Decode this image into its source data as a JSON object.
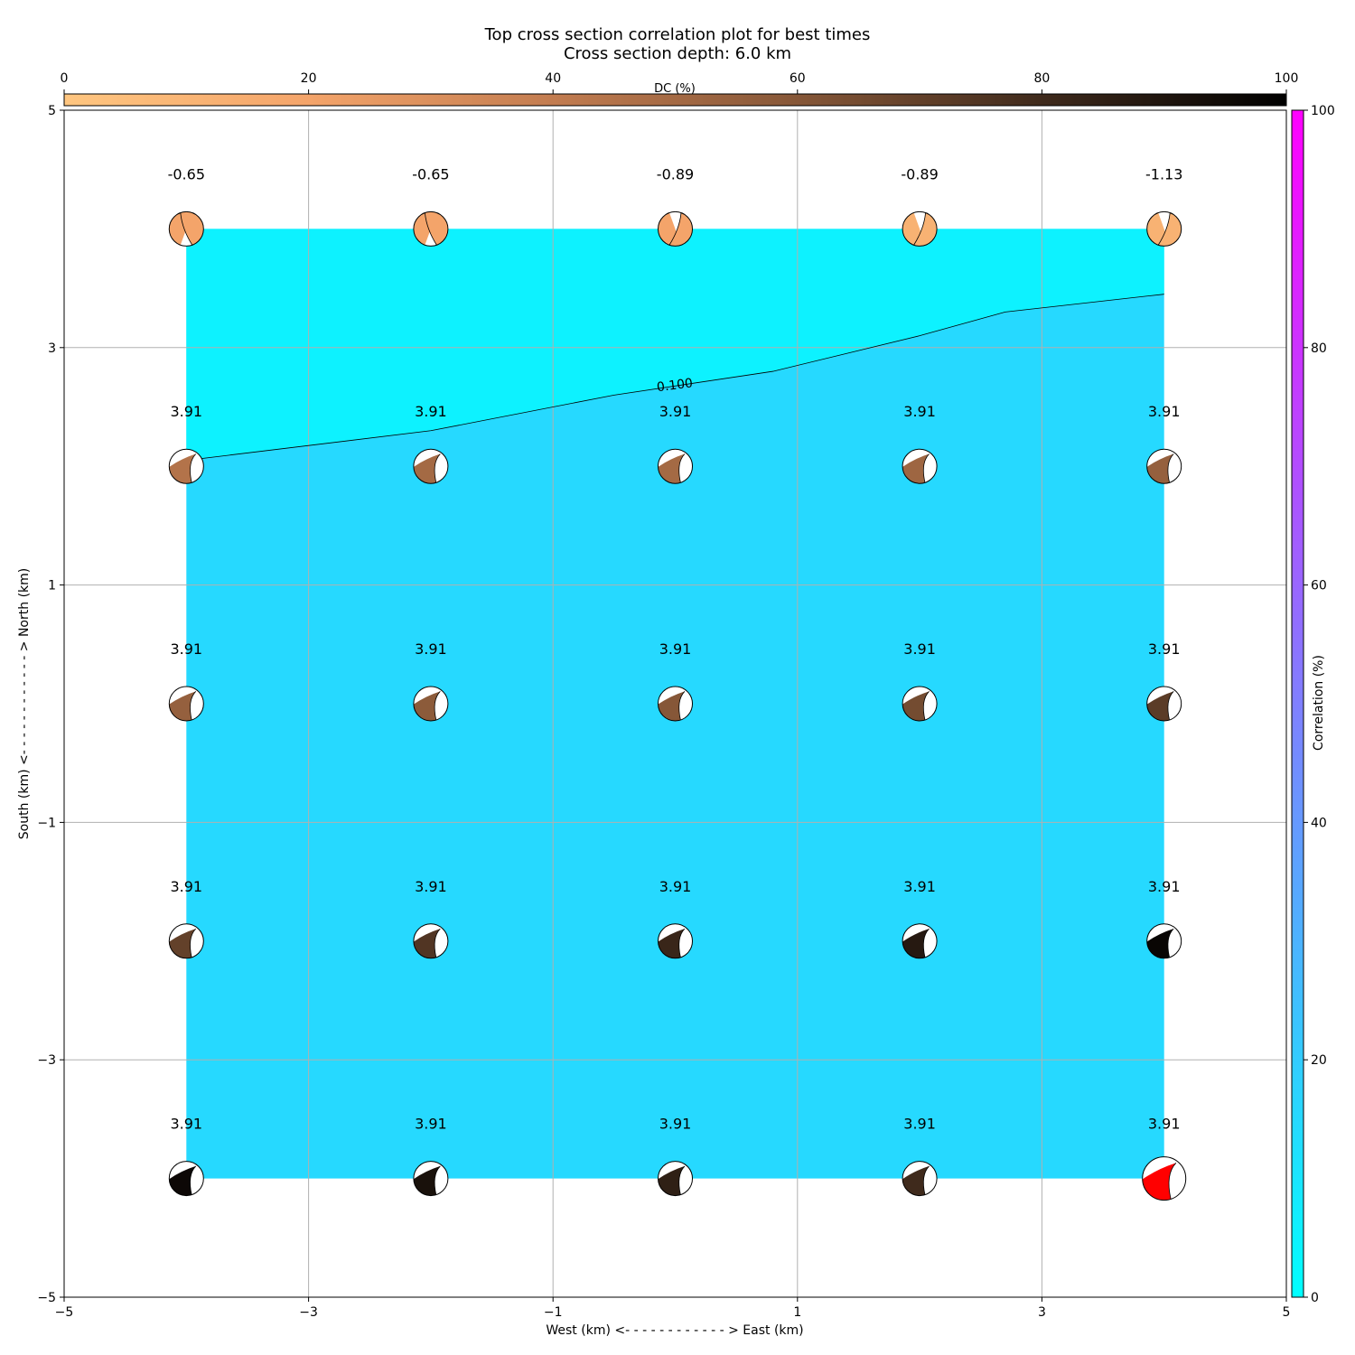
{
  "chart_data": {
    "type": "heatmap",
    "title": "Top cross section correlation plot for best times",
    "subtitle": "Cross section depth: 6.0 km",
    "xlabel": "West (km) <- - - - - - - - - - - - > East (km)",
    "ylabel": "South (km) <- - - - - - - - - - - - > North (km)",
    "xlim": [
      -5,
      5
    ],
    "ylim": [
      -5,
      5
    ],
    "x_ticks": [
      "−5",
      "−3",
      "−1",
      "1",
      "3",
      "5"
    ],
    "y_ticks": [
      "−5",
      "−3",
      "−1",
      "1",
      "3",
      "5"
    ],
    "grid": true,
    "fill_region": {
      "x": [
        -4,
        4
      ],
      "y": [
        -4,
        4
      ]
    },
    "correlation_field": {
      "upper_value": 5,
      "lower_value": 15,
      "contour_level_label": "0.100",
      "contour": [
        [
          -4,
          2.05
        ],
        [
          -2,
          2.3
        ],
        [
          -0.5,
          2.6
        ],
        [
          0.8,
          2.8
        ],
        [
          2,
          3.1
        ],
        [
          2.7,
          3.3
        ],
        [
          4,
          3.45
        ]
      ]
    },
    "dc_colorbar": {
      "label": "DC (%)",
      "ticks": [
        "0",
        "20",
        "40",
        "60",
        "80",
        "100"
      ],
      "range": [
        0,
        100
      ],
      "colors": [
        "#ffc680",
        "#f4a46a",
        "#c27c50",
        "#865738",
        "#3f2a1c",
        "#000000"
      ]
    },
    "correlation_colorbar": {
      "label": "Correlation (%)",
      "ticks": [
        "0",
        "20",
        "40",
        "60",
        "80",
        "100"
      ],
      "range": [
        0,
        100
      ],
      "colors": [
        "#00ffff",
        "#ff00ff"
      ]
    },
    "x_positions": [
      -4,
      -2,
      0,
      2,
      4
    ],
    "y_positions": [
      4,
      2,
      0,
      -2,
      -4
    ],
    "points": [
      {
        "x": -4,
        "y": 4,
        "label": "-0.65",
        "dc": 20
      },
      {
        "x": -2,
        "y": 4,
        "label": "-0.65",
        "dc": 20
      },
      {
        "x": 0,
        "y": 4,
        "label": "-0.89",
        "dc": 20
      },
      {
        "x": 2,
        "y": 4,
        "label": "-0.89",
        "dc": 12
      },
      {
        "x": 4,
        "y": 4,
        "label": "-1.13",
        "dc": 12
      },
      {
        "x": -4,
        "y": 2,
        "label": "3.91",
        "dc": 45
      },
      {
        "x": -2,
        "y": 2,
        "label": "3.91",
        "dc": 50
      },
      {
        "x": 0,
        "y": 2,
        "label": "3.91",
        "dc": 50
      },
      {
        "x": 2,
        "y": 2,
        "label": "3.91",
        "dc": 52
      },
      {
        "x": 4,
        "y": 2,
        "label": "3.91",
        "dc": 55
      },
      {
        "x": -4,
        "y": 0,
        "label": "3.91",
        "dc": 55
      },
      {
        "x": -2,
        "y": 0,
        "label": "3.91",
        "dc": 58
      },
      {
        "x": 0,
        "y": 0,
        "label": "3.91",
        "dc": 60
      },
      {
        "x": 2,
        "y": 0,
        "label": "3.91",
        "dc": 65
      },
      {
        "x": 4,
        "y": 0,
        "label": "3.91",
        "dc": 72
      },
      {
        "x": -4,
        "y": -2,
        "label": "3.91",
        "dc": 70
      },
      {
        "x": -2,
        "y": -2,
        "label": "3.91",
        "dc": 75
      },
      {
        "x": 0,
        "y": -2,
        "label": "3.91",
        "dc": 82
      },
      {
        "x": 2,
        "y": -2,
        "label": "3.91",
        "dc": 88
      },
      {
        "x": 4,
        "y": -2,
        "label": "3.91",
        "dc": 97
      },
      {
        "x": -4,
        "y": -4,
        "label": "3.91",
        "dc": 96
      },
      {
        "x": -2,
        "y": -4,
        "label": "3.91",
        "dc": 92
      },
      {
        "x": 0,
        "y": -4,
        "label": "3.91",
        "dc": 85
      },
      {
        "x": 2,
        "y": -4,
        "label": "3.91",
        "dc": 80
      },
      {
        "x": 4,
        "y": -4,
        "label": "3.91",
        "dc": 100,
        "highlight": true,
        "highlight_color": "#ff0000"
      }
    ]
  }
}
